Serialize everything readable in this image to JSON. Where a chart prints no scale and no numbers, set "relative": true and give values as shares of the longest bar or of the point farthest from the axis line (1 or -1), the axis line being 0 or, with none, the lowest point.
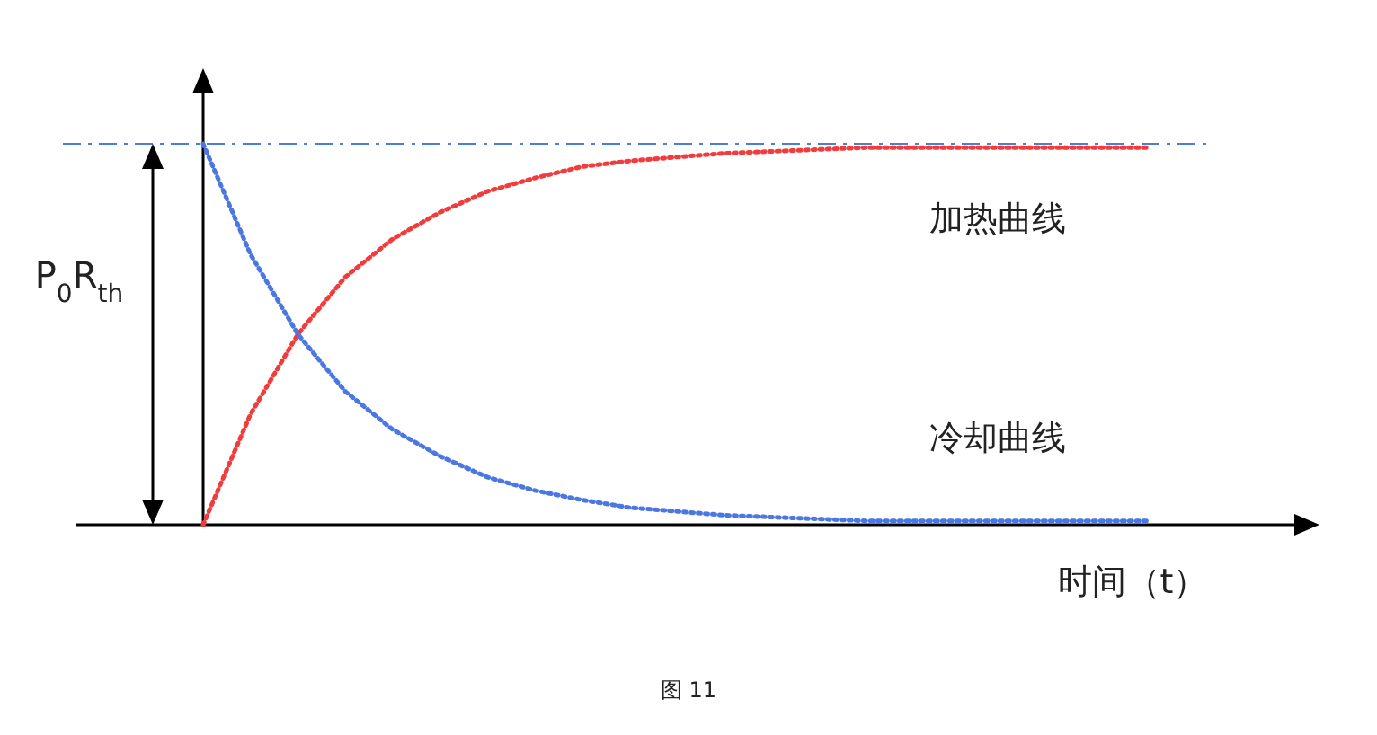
{
  "chart_data": {
    "type": "line",
    "relative": true,
    "xlabel": "时间（t）",
    "categories": [
      null,
      null,
      null,
      null,
      null,
      null,
      null,
      null,
      null,
      null,
      null,
      null,
      null,
      null,
      null,
      null,
      null,
      null,
      null,
      null,
      null
    ],
    "series": [
      {
        "name": "加热曲线",
        "color": "#f03c3c",
        "values": [
          0,
          0.29,
          0.5,
          0.65,
          0.75,
          0.82,
          0.875,
          0.91,
          0.94,
          0.955,
          0.965,
          0.975,
          0.98,
          0.985,
          0.99,
          0.99,
          0.99,
          0.99,
          0.99,
          0.99,
          0.99
        ]
      },
      {
        "name": "冷却曲线",
        "color": "#4a78e0",
        "values": [
          1,
          0.71,
          0.5,
          0.35,
          0.25,
          0.18,
          0.125,
          0.09,
          0.065,
          0.045,
          0.035,
          0.025,
          0.02,
          0.015,
          0.01,
          0.01,
          0.01,
          0.01,
          0.01,
          0.01,
          0.01
        ]
      }
    ],
    "line_style": "dotted",
    "marker": "none",
    "ref_lines": [
      {
        "axis": "y",
        "value": 1,
        "color": "#4a7fd6",
        "line_style": "dashed"
      }
    ],
    "annotations": [
      "P$_{0}$R$_{th}$",
      "图 11"
    ]
  }
}
